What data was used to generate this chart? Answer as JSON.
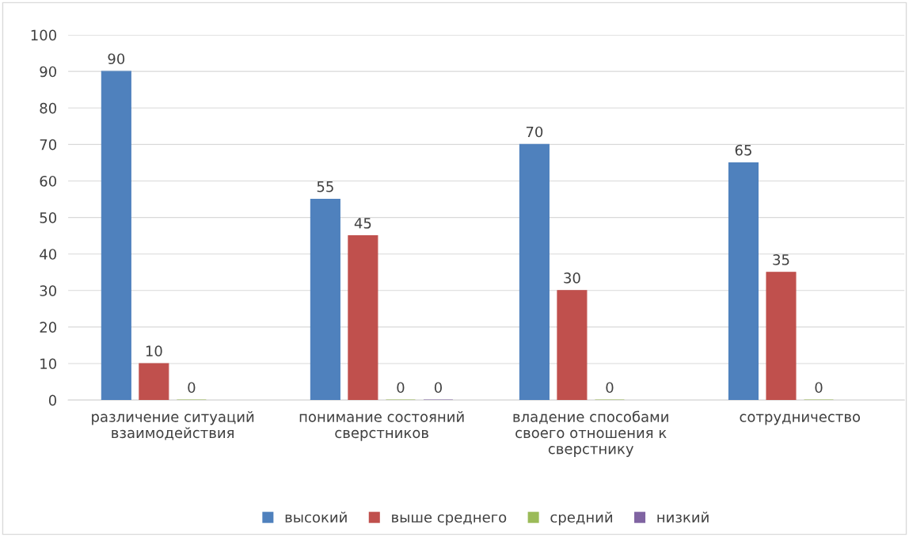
{
  "chart_data": {
    "type": "bar",
    "categories": [
      "различение ситуаций\nвзаимодействия",
      "понимание состояний\nсверстников",
      "владение способами\nсвоего отношения к\nсверстнику",
      "сотрудничество"
    ],
    "series": [
      {
        "name": "высокий",
        "color": "#4f81bd",
        "values": [
          90,
          55,
          70,
          65
        ]
      },
      {
        "name": "выше среднего",
        "color": "#c0504d",
        "values": [
          10,
          45,
          30,
          35
        ]
      },
      {
        "name": "средний",
        "color": "#9bbb59",
        "values": [
          0,
          0,
          0,
          0
        ]
      },
      {
        "name": "низкий",
        "color": "#8064a2",
        "values": [
          null,
          0,
          null,
          null
        ]
      }
    ],
    "ylim": [
      0,
      100
    ],
    "yticks": [
      0,
      10,
      20,
      30,
      40,
      50,
      60,
      70,
      80,
      90,
      100
    ],
    "grid": "y",
    "legend": "bottom",
    "data_labels": true
  }
}
